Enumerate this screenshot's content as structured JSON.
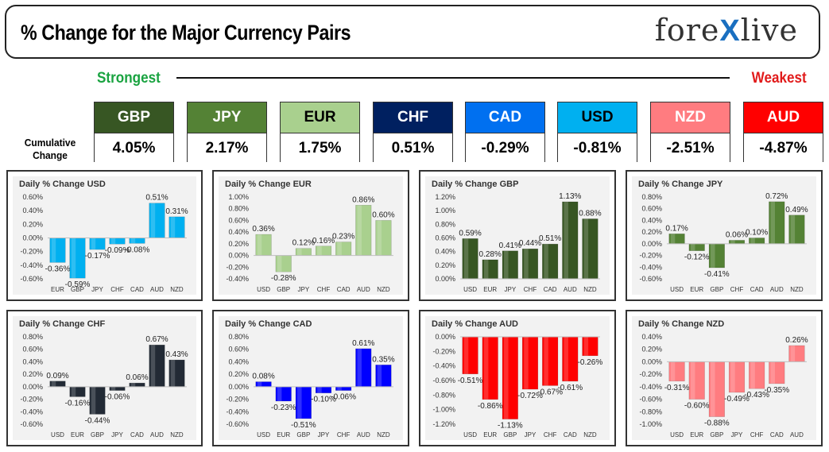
{
  "header": {
    "title": "% Change for the Major Currency Pairs",
    "logo_left": "fore",
    "logo_x": "X",
    "logo_right": "live"
  },
  "strength": {
    "strongest_label": "Strongest",
    "weakest_label": "Weakest",
    "cumulative_label": "Cumulative Change"
  },
  "currencies": [
    {
      "code": "GBP",
      "value": "4.05%",
      "bg": "#375623",
      "fg": "#ffffff"
    },
    {
      "code": "JPY",
      "value": "2.17%",
      "bg": "#548235",
      "fg": "#ffffff"
    },
    {
      "code": "EUR",
      "value": "1.75%",
      "bg": "#a9d08e",
      "fg": "#000000"
    },
    {
      "code": "CHF",
      "value": "0.51%",
      "bg": "#002060",
      "fg": "#ffffff"
    },
    {
      "code": "CAD",
      "value": "-0.29%",
      "bg": "#0070f0",
      "fg": "#ffffff"
    },
    {
      "code": "USD",
      "value": "-0.81%",
      "bg": "#00b0f0",
      "fg": "#000000"
    },
    {
      "code": "NZD",
      "value": "-2.51%",
      "bg": "#ff7c80",
      "fg": "#ffffff"
    },
    {
      "code": "AUD",
      "value": "-4.87%",
      "bg": "#ff0000",
      "fg": "#ffffff"
    }
  ],
  "chart_data": [
    {
      "type": "bar",
      "title": "Daily % Change USD",
      "categories": [
        "EUR",
        "GBP",
        "JPY",
        "CHF",
        "CAD",
        "AUD",
        "NZD"
      ],
      "values": [
        -0.36,
        -0.59,
        -0.17,
        -0.09,
        -0.08,
        0.51,
        0.31
      ],
      "labels": [
        "-0.36%",
        "-0.59%",
        "-0.17%",
        "-0.09%",
        "-0.08%",
        "0.51%",
        "0.31%"
      ],
      "ylim": [
        -0.6,
        0.6
      ],
      "ticks": [
        "0.60%",
        "0.40%",
        "0.20%",
        "0.00%",
        "-0.20%",
        "-0.40%",
        "-0.60%"
      ],
      "tick_values": [
        0.6,
        0.4,
        0.2,
        0,
        -0.2,
        -0.4,
        -0.6
      ],
      "color": "#00b0f0"
    },
    {
      "type": "bar",
      "title": "Daily % Change EUR",
      "categories": [
        "USD",
        "GBP",
        "JPY",
        "CHF",
        "CAD",
        "AUD",
        "NZD"
      ],
      "values": [
        0.36,
        -0.28,
        0.12,
        0.16,
        0.23,
        0.86,
        0.6
      ],
      "labels": [
        "0.36%",
        "-0.28%",
        "0.12%",
        "0.16%",
        "0.23%",
        "0.86%",
        "0.60%"
      ],
      "ylim": [
        -0.4,
        1.0
      ],
      "ticks": [
        "1.00%",
        "0.80%",
        "0.60%",
        "0.40%",
        "0.20%",
        "0.00%",
        "-0.20%",
        "-0.40%"
      ],
      "tick_values": [
        1,
        0.8,
        0.6,
        0.4,
        0.2,
        0,
        -0.2,
        -0.4
      ],
      "color": "#a9d08e"
    },
    {
      "type": "bar",
      "title": "Daily % Change GBP",
      "categories": [
        "USD",
        "EUR",
        "JPY",
        "CHF",
        "CAD",
        "AUD",
        "NZD"
      ],
      "values": [
        0.59,
        0.28,
        0.41,
        0.44,
        0.51,
        1.13,
        0.88
      ],
      "labels": [
        "0.59%",
        "0.28%",
        "0.41%",
        "0.44%",
        "0.51%",
        "1.13%",
        "0.88%"
      ],
      "ylim": [
        0,
        1.2
      ],
      "ticks": [
        "1.20%",
        "1.00%",
        "0.80%",
        "0.60%",
        "0.40%",
        "0.20%",
        "0.00%"
      ],
      "tick_values": [
        1.2,
        1,
        0.8,
        0.6,
        0.4,
        0.2,
        0
      ],
      "color": "#375623"
    },
    {
      "type": "bar",
      "title": "Daily % Change JPY",
      "categories": [
        "USD",
        "EUR",
        "GBP",
        "CHF",
        "CAD",
        "AUD",
        "NZD"
      ],
      "values": [
        0.17,
        -0.12,
        -0.41,
        0.06,
        0.1,
        0.72,
        0.49
      ],
      "labels": [
        "0.17%",
        "-0.12%",
        "-0.41%",
        "0.06%",
        "0.10%",
        "0.72%",
        "0.49%"
      ],
      "ylim": [
        -0.6,
        0.8
      ],
      "ticks": [
        "0.80%",
        "0.60%",
        "0.40%",
        "0.20%",
        "0.00%",
        "-0.20%",
        "-0.40%",
        "-0.60%"
      ],
      "tick_values": [
        0.8,
        0.6,
        0.4,
        0.2,
        0,
        -0.2,
        -0.4,
        -0.6
      ],
      "color": "#548235"
    },
    {
      "type": "bar",
      "title": "Daily % Change CHF",
      "categories": [
        "USD",
        "EUR",
        "GBP",
        "JPY",
        "CAD",
        "AUD",
        "NZD"
      ],
      "values": [
        0.09,
        -0.16,
        -0.44,
        -0.06,
        0.06,
        0.67,
        0.43
      ],
      "labels": [
        "0.09%",
        "-0.16%",
        "-0.44%",
        "-0.06%",
        "0.06%",
        "0.67%",
        "0.43%"
      ],
      "ylim": [
        -0.6,
        0.8
      ],
      "ticks": [
        "0.80%",
        "0.60%",
        "0.40%",
        "0.20%",
        "0.00%",
        "-0.20%",
        "-0.40%",
        "-0.60%"
      ],
      "tick_values": [
        0.8,
        0.6,
        0.4,
        0.2,
        0,
        -0.2,
        -0.4,
        -0.6
      ],
      "color": "#222a35"
    },
    {
      "type": "bar",
      "title": "Daily % Change CAD",
      "categories": [
        "USD",
        "EUR",
        "GBP",
        "JPY",
        "CHF",
        "AUD",
        "NZD"
      ],
      "values": [
        0.08,
        -0.23,
        -0.51,
        -0.1,
        -0.06,
        0.61,
        0.35
      ],
      "labels": [
        "0.08%",
        "-0.23%",
        "-0.51%",
        "-0.10%",
        "-0.06%",
        "0.61%",
        "0.35%"
      ],
      "ylim": [
        -0.6,
        0.8
      ],
      "ticks": [
        "0.80%",
        "0.60%",
        "0.40%",
        "0.20%",
        "0.00%",
        "-0.20%",
        "-0.40%",
        "-0.60%"
      ],
      "tick_values": [
        0.8,
        0.6,
        0.4,
        0.2,
        0,
        -0.2,
        -0.4,
        -0.6
      ],
      "color": "#0000ff"
    },
    {
      "type": "bar",
      "title": "Daily % Change AUD",
      "categories": [
        "USD",
        "EUR",
        "GBP",
        "JPY",
        "CHF",
        "CAD",
        "NZD"
      ],
      "values": [
        -0.51,
        -0.86,
        -1.13,
        -0.72,
        -0.67,
        -0.61,
        -0.26
      ],
      "labels": [
        "-0.51%",
        "-0.86%",
        "-1.13%",
        "-0.72%",
        "-0.67%",
        "-0.61%",
        "-0.26%"
      ],
      "ylim": [
        -1.2,
        0
      ],
      "ticks": [
        "0.00%",
        "-0.20%",
        "-0.40%",
        "-0.60%",
        "-0.80%",
        "-1.00%",
        "-1.20%"
      ],
      "tick_values": [
        0,
        -0.2,
        -0.4,
        -0.6,
        -0.8,
        -1,
        -1.2
      ],
      "color": "#ff0000"
    },
    {
      "type": "bar",
      "title": "Daily % Change NZD",
      "categories": [
        "USD",
        "EUR",
        "GBP",
        "JPY",
        "CHF",
        "CAD",
        "AUD"
      ],
      "values": [
        -0.31,
        -0.6,
        -0.88,
        -0.49,
        -0.43,
        -0.35,
        0.26
      ],
      "labels": [
        "-0.31%",
        "-0.60%",
        "-0.88%",
        "-0.49%",
        "-0.43%",
        "-0.35%",
        "0.26%"
      ],
      "ylim": [
        -1.0,
        0.4
      ],
      "ticks": [
        "0.40%",
        "0.20%",
        "0.00%",
        "-0.20%",
        "-0.40%",
        "-0.60%",
        "-0.80%",
        "-1.00%"
      ],
      "tick_values": [
        0.4,
        0.2,
        0,
        -0.2,
        -0.4,
        -0.6,
        -0.8,
        -1
      ],
      "color": "#ff7c80"
    }
  ]
}
